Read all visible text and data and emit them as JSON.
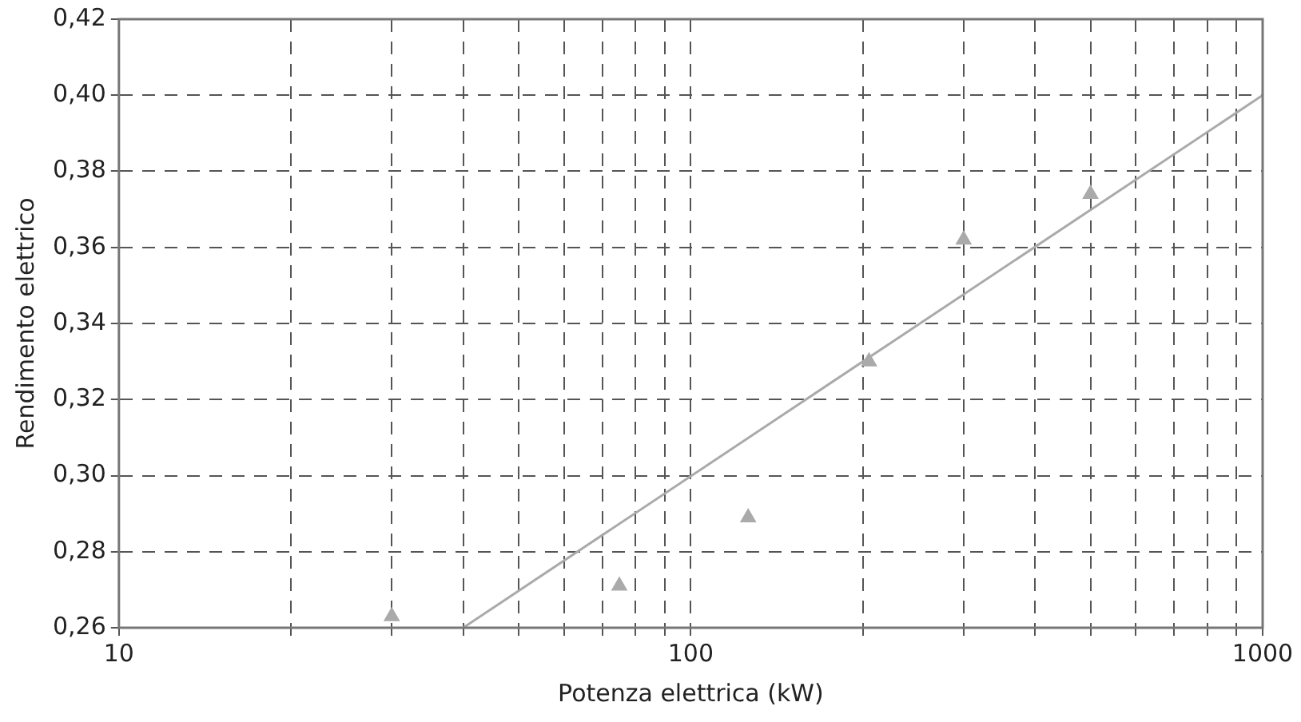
{
  "chart_data": {
    "type": "scatter",
    "xlabel": "Potenza elettrica (kW)",
    "ylabel": "Rendimento elettrico",
    "log": "x",
    "grid": true,
    "line_style": "dashed",
    "legend": false,
    "xlim": [
      10,
      1000
    ],
    "xticks": [
      10,
      {
        "value": 20,
        "label": null
      },
      {
        "value": 30,
        "label": null
      },
      {
        "value": 40,
        "label": null
      },
      {
        "value": 50,
        "label": null
      },
      {
        "value": 60,
        "label": null
      },
      {
        "value": 70,
        "label": null
      },
      {
        "value": 80,
        "label": null
      },
      {
        "value": 90,
        "label": null
      },
      100,
      {
        "value": 200,
        "label": null
      },
      {
        "value": 300,
        "label": null
      },
      {
        "value": 400,
        "label": null
      },
      {
        "value": 500,
        "label": null
      },
      {
        "value": 600,
        "label": null
      },
      {
        "value": 700,
        "label": null
      },
      {
        "value": 800,
        "label": null
      },
      {
        "value": 900,
        "label": null
      },
      1000
    ],
    "ylim": [
      0.26,
      0.42
    ],
    "yticks": [
      {
        "value": 0.26,
        "label": "0,26"
      },
      {
        "value": 0.28,
        "label": "0,28"
      },
      {
        "value": 0.3,
        "label": "0,30"
      },
      {
        "value": 0.32,
        "label": "0,32"
      },
      {
        "value": 0.34,
        "label": "0,34"
      },
      {
        "value": 0.36,
        "label": "0,36"
      },
      {
        "value": 0.38,
        "label": "0,38"
      },
      {
        "value": 0.4,
        "label": "0,40"
      },
      {
        "value": 0.42,
        "label": "0,42"
      }
    ],
    "series": [
      {
        "type": "scatter",
        "marker": "triangle",
        "color": "#aaaaaa",
        "x": [
          30,
          75,
          126,
          205,
          300,
          500
        ],
        "values": [
          0.263,
          0.271,
          0.289,
          0.33,
          0.362,
          0.374
        ]
      },
      {
        "type": "line",
        "marker": "none",
        "line_style": "solid",
        "color": "#aaaaaa",
        "x": [
          40,
          1000
        ],
        "values": [
          0.26,
          0.4
        ]
      }
    ]
  }
}
